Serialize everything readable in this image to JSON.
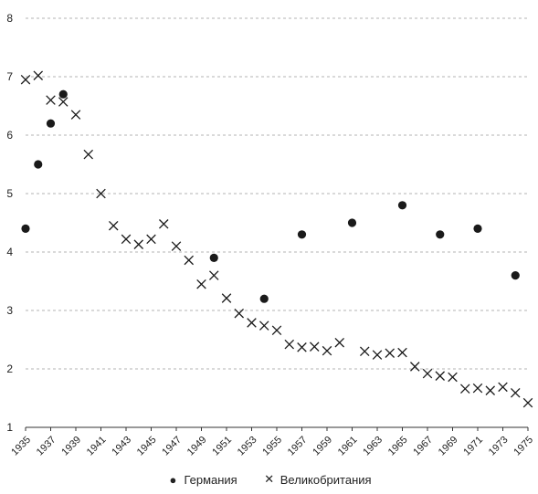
{
  "chart_data": {
    "type": "scatter",
    "title": "",
    "xlabel": "",
    "ylabel": "",
    "xlim": [
      1935,
      1975
    ],
    "ylim": [
      1,
      8
    ],
    "yticks": [
      1,
      2,
      3,
      4,
      5,
      6,
      7,
      8
    ],
    "xticks": [
      1935,
      1937,
      1939,
      1941,
      1943,
      1945,
      1947,
      1949,
      1951,
      1953,
      1955,
      1957,
      1959,
      1961,
      1963,
      1965,
      1967,
      1969,
      1971,
      1973,
      1975
    ],
    "grid": "horizontal dashed",
    "legend_position": "bottom",
    "series": [
      {
        "name": "Германия",
        "marker": "filled-circle",
        "color": "#1a1a1a",
        "points": [
          [
            1935,
            4.4
          ],
          [
            1936,
            5.5
          ],
          [
            1937,
            6.2
          ],
          [
            1938,
            6.7
          ],
          [
            1950,
            3.9
          ],
          [
            1954,
            3.2
          ],
          [
            1957,
            4.3
          ],
          [
            1961,
            4.5
          ],
          [
            1965,
            4.8
          ],
          [
            1968,
            4.3
          ],
          [
            1971,
            4.4
          ],
          [
            1974,
            3.6
          ]
        ]
      },
      {
        "name": "Великобритания",
        "marker": "x-cross",
        "color": "#1a1a1a",
        "points": [
          [
            1935,
            6.95
          ],
          [
            1936,
            7.02
          ],
          [
            1937,
            6.6
          ],
          [
            1938,
            6.57
          ],
          [
            1939,
            6.35
          ],
          [
            1940,
            5.67
          ],
          [
            1941,
            5.0
          ],
          [
            1942,
            4.45
          ],
          [
            1943,
            4.22
          ],
          [
            1944,
            4.13
          ],
          [
            1945,
            4.22
          ],
          [
            1946,
            4.48
          ],
          [
            1947,
            4.1
          ],
          [
            1948,
            3.86
          ],
          [
            1949,
            3.45
          ],
          [
            1950,
            3.6
          ],
          [
            1951,
            3.21
          ],
          [
            1952,
            2.95
          ],
          [
            1953,
            2.79
          ],
          [
            1954,
            2.74
          ],
          [
            1955,
            2.66
          ],
          [
            1956,
            2.42
          ],
          [
            1957,
            2.37
          ],
          [
            1958,
            2.38
          ],
          [
            1959,
            2.31
          ],
          [
            1960,
            2.45
          ],
          [
            1962,
            2.3
          ],
          [
            1963,
            2.24
          ],
          [
            1964,
            2.27
          ],
          [
            1965,
            2.28
          ],
          [
            1966,
            2.04
          ],
          [
            1967,
            1.92
          ],
          [
            1968,
            1.88
          ],
          [
            1969,
            1.86
          ],
          [
            1970,
            1.66
          ],
          [
            1971,
            1.67
          ],
          [
            1972,
            1.63
          ],
          [
            1973,
            1.69
          ],
          [
            1974,
            1.59
          ],
          [
            1975,
            1.42
          ]
        ]
      }
    ]
  }
}
